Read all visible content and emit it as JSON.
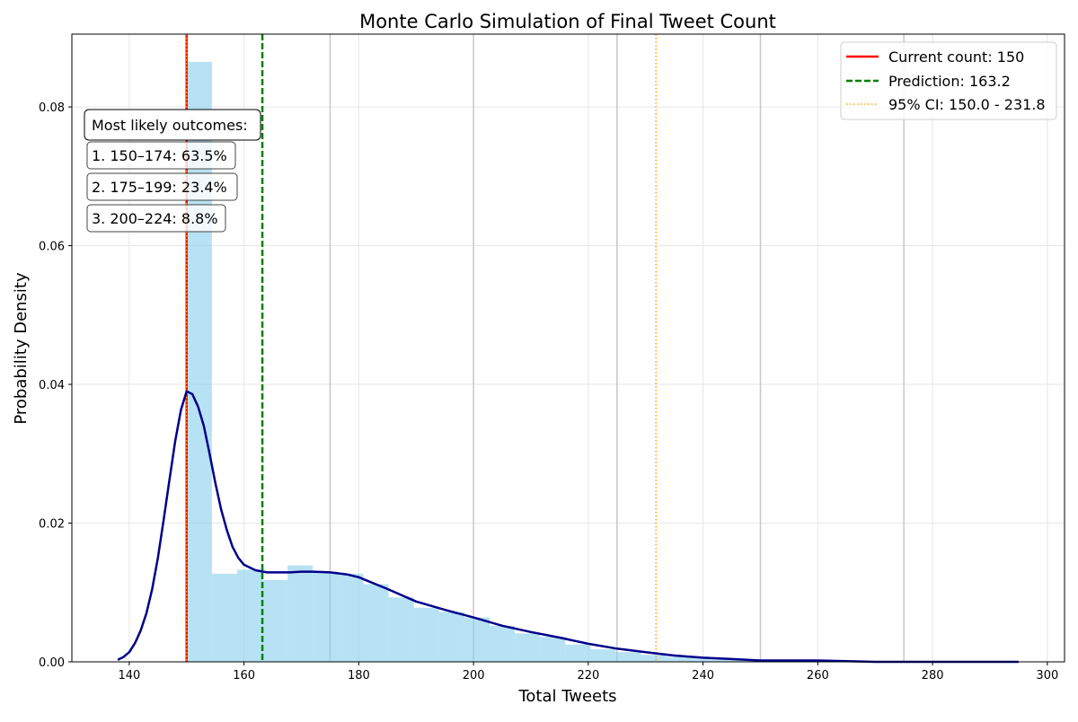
{
  "chart_data": {
    "type": "histogram",
    "title": "Monte Carlo Simulation of Final Tweet Count",
    "xlabel": "Total Tweets",
    "ylabel": "Probability Density",
    "xlim": [
      130,
      303
    ],
    "ylim": [
      0,
      0.0905
    ],
    "x_ticks": [
      140,
      160,
      180,
      200,
      220,
      240,
      260,
      280,
      300
    ],
    "y_ticks": [
      0.0,
      0.02,
      0.04,
      0.06,
      0.08
    ],
    "y_tick_labels": [
      "0.00",
      "0.02",
      "0.04",
      "0.06",
      "0.08"
    ],
    "grid": true,
    "vertical_guides": [
      175,
      200,
      225,
      250,
      275
    ],
    "histogram": {
      "color": "#87ceeb",
      "bins": [
        {
          "x0": 150.0,
          "x1": 154.4,
          "density": 0.0865
        },
        {
          "x0": 154.4,
          "x1": 158.8,
          "density": 0.0127
        },
        {
          "x0": 158.8,
          "x1": 163.2,
          "density": 0.0133
        },
        {
          "x0": 163.2,
          "x1": 167.6,
          "density": 0.0118
        },
        {
          "x0": 167.6,
          "x1": 172.0,
          "density": 0.0139
        },
        {
          "x0": 172.0,
          "x1": 176.4,
          "density": 0.013
        },
        {
          "x0": 176.4,
          "x1": 180.8,
          "density": 0.0127
        },
        {
          "x0": 180.8,
          "x1": 185.2,
          "density": 0.0112
        },
        {
          "x0": 185.2,
          "x1": 189.6,
          "density": 0.0093
        },
        {
          "x0": 189.6,
          "x1": 194.0,
          "density": 0.0078
        },
        {
          "x0": 194.0,
          "x1": 198.4,
          "density": 0.0072
        },
        {
          "x0": 198.4,
          "x1": 202.8,
          "density": 0.0064
        },
        {
          "x0": 202.8,
          "x1": 207.2,
          "density": 0.0052
        },
        {
          "x0": 207.2,
          "x1": 211.6,
          "density": 0.0041
        },
        {
          "x0": 211.6,
          "x1": 216.0,
          "density": 0.0036
        },
        {
          "x0": 216.0,
          "x1": 220.4,
          "density": 0.0025
        },
        {
          "x0": 220.4,
          "x1": 224.8,
          "density": 0.0018
        },
        {
          "x0": 224.8,
          "x1": 229.2,
          "density": 0.0014
        },
        {
          "x0": 229.2,
          "x1": 233.6,
          "density": 0.001
        },
        {
          "x0": 233.6,
          "x1": 238.0,
          "density": 0.0007
        },
        {
          "x0": 238.0,
          "x1": 242.4,
          "density": 0.0005
        },
        {
          "x0": 242.4,
          "x1": 246.8,
          "density": 0.0004
        },
        {
          "x0": 246.8,
          "x1": 251.2,
          "density": 0.0003
        },
        {
          "x0": 251.2,
          "x1": 255.6,
          "density": 0.0002
        },
        {
          "x0": 255.6,
          "x1": 260.0,
          "density": 0.0002
        },
        {
          "x0": 260.0,
          "x1": 264.4,
          "density": 0.0001
        }
      ]
    },
    "kde": {
      "color": "#00008b",
      "x": [
        138,
        139,
        140,
        141,
        142,
        143,
        144,
        145,
        146,
        147,
        148,
        149,
        150,
        151,
        152,
        153,
        154,
        155,
        156,
        157,
        158,
        159,
        160,
        162,
        164,
        166,
        168,
        170,
        172,
        175,
        178,
        180,
        185,
        190,
        195,
        200,
        205,
        210,
        215,
        220,
        225,
        230,
        235,
        240,
        245,
        250,
        255,
        260,
        265,
        270,
        280,
        295
      ],
      "y": [
        0.0003,
        0.0007,
        0.0014,
        0.0027,
        0.0045,
        0.007,
        0.0105,
        0.015,
        0.0205,
        0.0262,
        0.0318,
        0.0363,
        0.039,
        0.0386,
        0.0368,
        0.034,
        0.03,
        0.0258,
        0.022,
        0.019,
        0.0166,
        0.015,
        0.014,
        0.0132,
        0.0129,
        0.0129,
        0.0129,
        0.013,
        0.013,
        0.0129,
        0.0126,
        0.0122,
        0.0105,
        0.0087,
        0.0075,
        0.0064,
        0.0052,
        0.0043,
        0.0035,
        0.0026,
        0.0019,
        0.0014,
        0.0009,
        0.0006,
        0.0004,
        0.0002,
        0.0002,
        0.0002,
        0.0001,
        0.0,
        0.0,
        0.0
      ]
    },
    "reference_lines": [
      {
        "name": "current",
        "x": 150,
        "color": "#ff0000",
        "style": "solid"
      },
      {
        "name": "prediction",
        "x": 163.2,
        "color": "#008000",
        "style": "dashed"
      },
      {
        "name": "ci-lower",
        "x": 150.0,
        "color": "#ffa500",
        "style": "dotted"
      },
      {
        "name": "ci-upper",
        "x": 231.8,
        "color": "#ffa500",
        "style": "dotted"
      }
    ],
    "legend": {
      "position": "top-right",
      "entries": [
        {
          "label": "Current count: 150",
          "color": "#ff0000",
          "style": "solid"
        },
        {
          "label": "Prediction: 163.2",
          "color": "#008000",
          "style": "dashed"
        },
        {
          "label": "95% CI: 150.0 - 231.8",
          "color": "#ffa500",
          "style": "dotted"
        }
      ]
    },
    "annotations": {
      "header": "Most likely outcomes:",
      "items": [
        "1. 150–174: 63.5%",
        "2. 175–199: 23.4%",
        "3. 200–224: 8.8%"
      ]
    }
  }
}
